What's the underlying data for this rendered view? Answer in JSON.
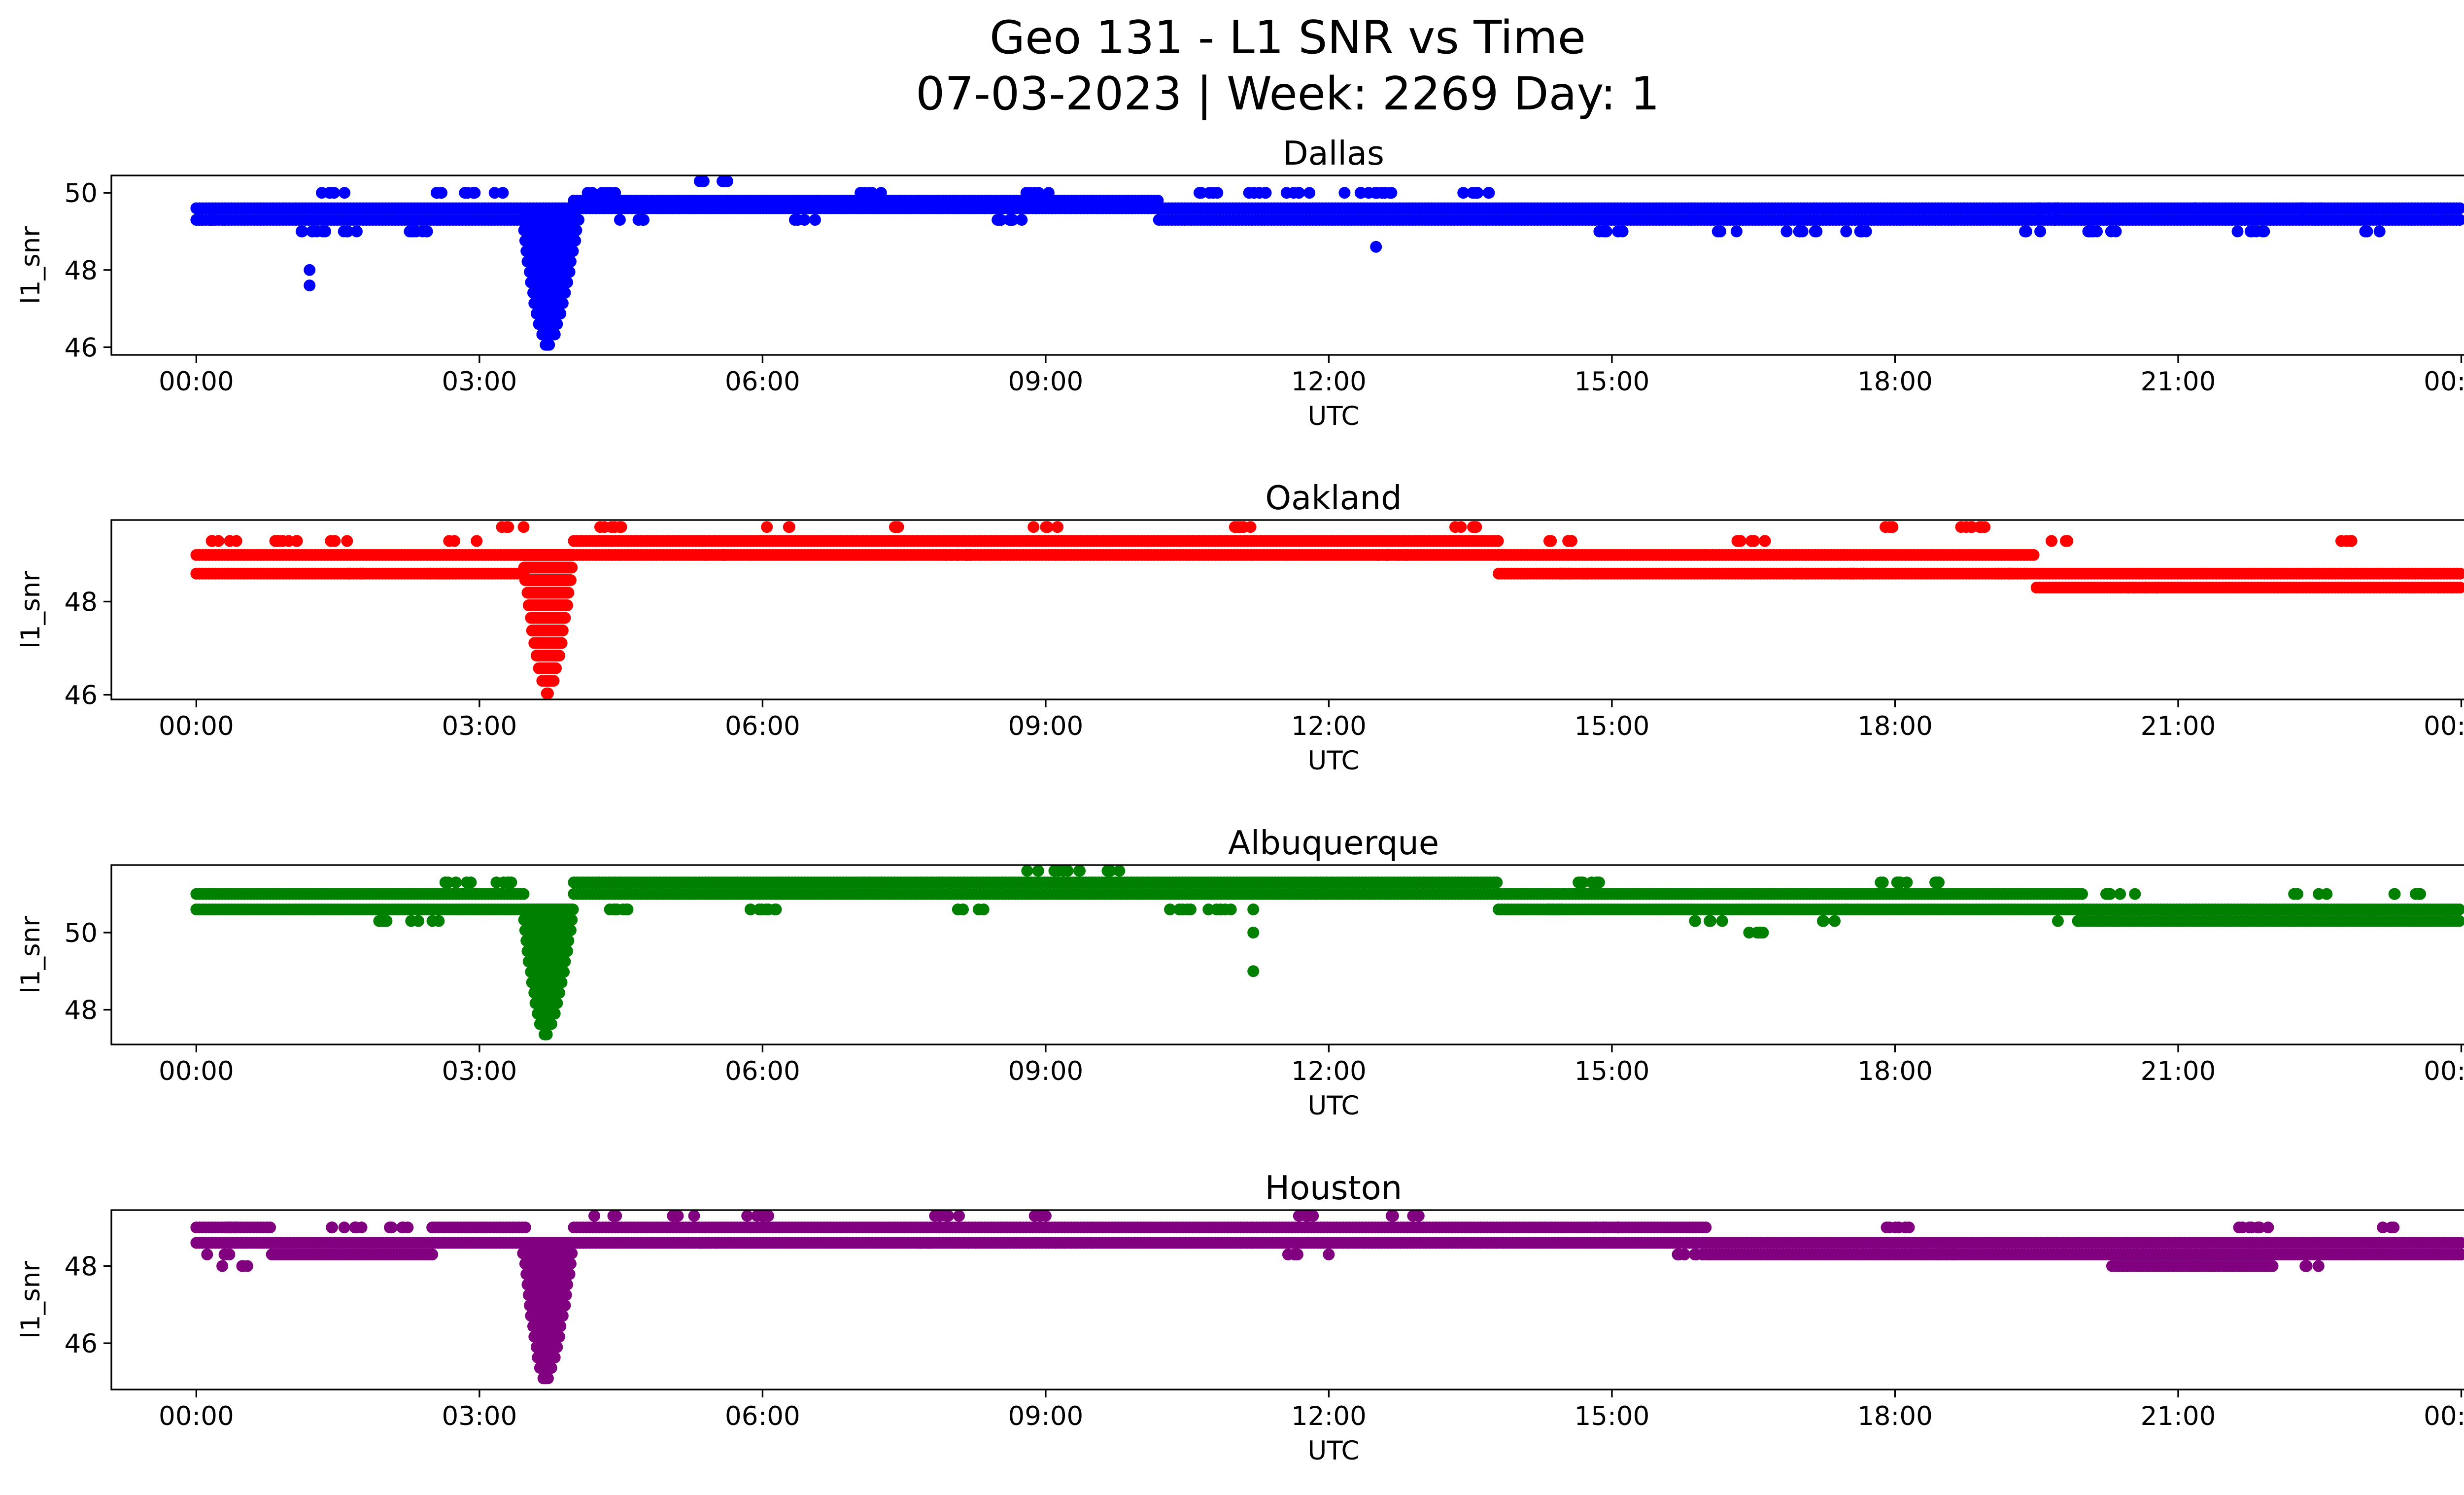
{
  "figure": {
    "title_line1": "Geo 131 - L1 SNR vs Time",
    "title_line2": "07-03-2023 | Week: 2269 Day: 1"
  },
  "chart_data": [
    {
      "type": "scatter",
      "title": "Dallas",
      "xlabel": "UTC",
      "ylabel": "l1_snr",
      "color": "#0000ff",
      "xlim_hours": [
        -0.9,
        25.0
      ],
      "ylim": [
        45.8,
        50.45
      ],
      "yticks": [
        46,
        48,
        50
      ],
      "xtick_labels": [
        "00:00",
        "03:00",
        "06:00",
        "09:00",
        "12:00",
        "15:00",
        "18:00",
        "21:00",
        "00:00"
      ],
      "base_levels": [
        {
          "start": 0.0,
          "end": 4.0,
          "values": [
            49.3,
            49.6
          ]
        },
        {
          "start": 4.0,
          "end": 10.2,
          "values": [
            49.6,
            49.8
          ]
        },
        {
          "start": 10.2,
          "end": 19.7,
          "values": [
            49.3,
            49.6
          ]
        },
        {
          "start": 19.7,
          "end": 24.0,
          "values": [
            49.3,
            49.6
          ]
        }
      ],
      "upper_band": [
        [
          1.4,
          50.0
        ],
        [
          2.7,
          50.0
        ],
        [
          3.1,
          50.0
        ],
        [
          4.3,
          50.0
        ],
        [
          5.5,
          50.3
        ],
        [
          7.2,
          50.0
        ],
        [
          8.9,
          50.0
        ],
        [
          10.7,
          50.0
        ],
        [
          11.3,
          50.0
        ],
        [
          11.7,
          50.0
        ],
        [
          12.3,
          50.0
        ],
        [
          12.6,
          50.0
        ],
        [
          13.6,
          50.0
        ],
        [
          19.6,
          49.6
        ],
        [
          21.2,
          49.6
        ],
        [
          22.4,
          49.6
        ]
      ],
      "lower_band": [
        [
          0.2,
          49.3
        ],
        [
          1.2,
          49.0
        ],
        [
          1.6,
          49.0
        ],
        [
          2.3,
          49.0
        ],
        [
          4.6,
          49.3
        ],
        [
          6.5,
          49.3
        ],
        [
          8.6,
          49.3
        ],
        [
          15.0,
          49.0
        ],
        [
          16.2,
          49.0
        ],
        [
          17.0,
          49.0
        ],
        [
          17.6,
          49.0
        ],
        [
          19.4,
          49.0
        ],
        [
          20.2,
          49.0
        ],
        [
          21.8,
          49.0
        ],
        [
          23.1,
          49.0
        ]
      ],
      "outliers": [
        [
          1.2,
          48.0
        ],
        [
          1.2,
          47.6
        ],
        [
          12.5,
          48.6
        ]
      ],
      "dip": {
        "start": 3.45,
        "center": 3.72,
        "end": 4.05,
        "min": 46.0,
        "base": 49.3
      }
    },
    {
      "type": "scatter",
      "title": "Oakland",
      "xlabel": "UTC",
      "ylabel": "l1_snr",
      "color": "#ff0000",
      "xlim_hours": [
        -0.9,
        25.0
      ],
      "ylim": [
        45.9,
        49.75
      ],
      "yticks": [
        46,
        48
      ],
      "xtick_labels": [
        "00:00",
        "03:00",
        "06:00",
        "09:00",
        "12:00",
        "15:00",
        "18:00",
        "21:00",
        "00:00"
      ],
      "base_levels": [
        {
          "start": 0.0,
          "end": 3.5,
          "values": [
            48.6,
            49.0
          ]
        },
        {
          "start": 4.0,
          "end": 13.8,
          "values": [
            49.0,
            49.3
          ]
        },
        {
          "start": 13.8,
          "end": 16.0,
          "values": [
            48.6,
            49.0
          ]
        },
        {
          "start": 16.0,
          "end": 19.5,
          "values": [
            48.6,
            49.0
          ]
        },
        {
          "start": 19.5,
          "end": 24.0,
          "values": [
            48.3,
            48.6
          ]
        }
      ],
      "upper_band": [
        [
          0.3,
          49.3
        ],
        [
          1.0,
          49.3
        ],
        [
          1.6,
          49.3
        ],
        [
          2.8,
          49.3
        ],
        [
          3.3,
          49.6
        ],
        [
          4.4,
          49.6
        ],
        [
          6.2,
          49.6
        ],
        [
          7.5,
          49.6
        ],
        [
          9.0,
          49.6
        ],
        [
          11.0,
          49.6
        ],
        [
          13.4,
          49.6
        ],
        [
          14.5,
          49.3
        ],
        [
          16.5,
          49.3
        ],
        [
          18.0,
          49.6
        ],
        [
          18.8,
          49.6
        ],
        [
          19.8,
          49.3
        ],
        [
          22.9,
          49.3
        ]
      ],
      "lower_band": [
        [
          1.6,
          48.6
        ],
        [
          2.6,
          48.6
        ],
        [
          5.5,
          49.0
        ],
        [
          8.1,
          49.0
        ],
        [
          12.7,
          49.0
        ],
        [
          14.6,
          48.6
        ],
        [
          17.0,
          48.6
        ],
        [
          17.5,
          48.6
        ],
        [
          19.2,
          48.6
        ],
        [
          20.6,
          48.3
        ],
        [
          23.6,
          48.3
        ]
      ],
      "outliers": [
        [
          18.7,
          49.6
        ],
        [
          19.1,
          48.6
        ]
      ],
      "dip": {
        "start": 3.45,
        "center": 3.72,
        "end": 4.0,
        "min": 46.0,
        "base": 49.0
      }
    },
    {
      "type": "scatter",
      "title": "Albuquerque",
      "xlabel": "UTC",
      "ylabel": "l1_snr",
      "color": "#008000",
      "xlim_hours": [
        -0.9,
        25.0
      ],
      "ylim": [
        47.1,
        51.75
      ],
      "yticks": [
        48,
        50
      ],
      "xtick_labels": [
        "00:00",
        "03:00",
        "06:00",
        "09:00",
        "12:00",
        "15:00",
        "18:00",
        "21:00",
        "00:00"
      ],
      "base_levels": [
        {
          "start": 0.0,
          "end": 3.5,
          "values": [
            50.6,
            51.0
          ]
        },
        {
          "start": 4.0,
          "end": 8.0,
          "values": [
            51.0,
            51.3
          ]
        },
        {
          "start": 8.0,
          "end": 13.8,
          "values": [
            51.0,
            51.3
          ]
        },
        {
          "start": 13.8,
          "end": 17.5,
          "values": [
            50.6,
            51.0
          ]
        },
        {
          "start": 17.5,
          "end": 20.0,
          "values": [
            50.6,
            51.0
          ]
        },
        {
          "start": 20.0,
          "end": 24.0,
          "values": [
            50.3,
            50.6
          ]
        }
      ],
      "upper_band": [
        [
          2.8,
          51.3
        ],
        [
          3.3,
          51.3
        ],
        [
          7.2,
          51.3
        ],
        [
          8.8,
          51.6
        ],
        [
          9.2,
          51.6
        ],
        [
          9.8,
          51.6
        ],
        [
          14.8,
          51.3
        ],
        [
          18.0,
          51.3
        ],
        [
          18.6,
          51.3
        ],
        [
          20.4,
          51.0
        ],
        [
          22.4,
          51.0
        ],
        [
          23.4,
          51.0
        ]
      ],
      "lower_band": [
        [
          1.9,
          50.3
        ],
        [
          2.4,
          50.3
        ],
        [
          4.5,
          50.6
        ],
        [
          6.0,
          50.6
        ],
        [
          8.2,
          50.6
        ],
        [
          10.4,
          50.6
        ],
        [
          10.9,
          50.6
        ],
        [
          14.5,
          50.6
        ],
        [
          16.0,
          50.3
        ],
        [
          16.5,
          50.0
        ],
        [
          17.4,
          50.3
        ],
        [
          19.8,
          50.3
        ],
        [
          23.6,
          50.3
        ]
      ],
      "outliers": [
        [
          11.2,
          50.6
        ],
        [
          11.2,
          50.0
        ],
        [
          11.2,
          49.0
        ],
        [
          16.6,
          50.0
        ]
      ],
      "dip": {
        "start": 3.45,
        "center": 3.7,
        "end": 4.0,
        "min": 47.3,
        "base": 50.6
      }
    },
    {
      "type": "scatter",
      "title": "Houston",
      "xlabel": "UTC",
      "ylabel": "l1_snr",
      "color": "#800080",
      "xlim_hours": [
        -0.9,
        25.0
      ],
      "ylim": [
        44.8,
        49.45
      ],
      "yticks": [
        46,
        48
      ],
      "xtick_labels": [
        "00:00",
        "03:00",
        "06:00",
        "09:00",
        "12:00",
        "15:00",
        "18:00",
        "21:00",
        "00:00"
      ],
      "base_levels": [
        {
          "start": 0.0,
          "end": 0.8,
          "values": [
            48.6,
            49.0
          ]
        },
        {
          "start": 0.8,
          "end": 2.5,
          "values": [
            48.3,
            48.6
          ]
        },
        {
          "start": 2.5,
          "end": 3.5,
          "values": [
            48.6,
            49.0
          ]
        },
        {
          "start": 4.0,
          "end": 9.5,
          "values": [
            48.6,
            49.0
          ]
        },
        {
          "start": 9.5,
          "end": 16.0,
          "values": [
            48.6,
            49.0
          ]
        },
        {
          "start": 16.0,
          "end": 19.0,
          "values": [
            48.3,
            48.6
          ]
        },
        {
          "start": 19.0,
          "end": 24.0,
          "values": [
            48.3,
            48.6
          ]
        },
        {
          "start": 20.3,
          "end": 22.0,
          "values": [
            48.0
          ]
        }
      ],
      "upper_band": [
        [
          0.4,
          49.0
        ],
        [
          1.6,
          49.0
        ],
        [
          2.2,
          49.0
        ],
        [
          4.3,
          49.3
        ],
        [
          5.2,
          49.3
        ],
        [
          6.0,
          49.3
        ],
        [
          8.0,
          49.3
        ],
        [
          9.0,
          49.3
        ],
        [
          11.7,
          49.3
        ],
        [
          12.8,
          49.3
        ],
        [
          15.0,
          49.0
        ],
        [
          18.0,
          49.0
        ],
        [
          21.8,
          49.0
        ],
        [
          23.2,
          49.0
        ]
      ],
      "lower_band": [
        [
          0.2,
          48.3
        ],
        [
          0.45,
          48.0
        ],
        [
          5.5,
          48.6
        ],
        [
          7.8,
          48.6
        ],
        [
          11.7,
          48.3
        ],
        [
          15.8,
          48.3
        ],
        [
          18.5,
          48.3
        ],
        [
          22.5,
          48.0
        ]
      ],
      "outliers": [
        [
          12.0,
          48.3
        ]
      ],
      "dip": {
        "start": 3.45,
        "center": 3.7,
        "end": 4.0,
        "min": 45.0,
        "base": 48.6
      }
    }
  ]
}
